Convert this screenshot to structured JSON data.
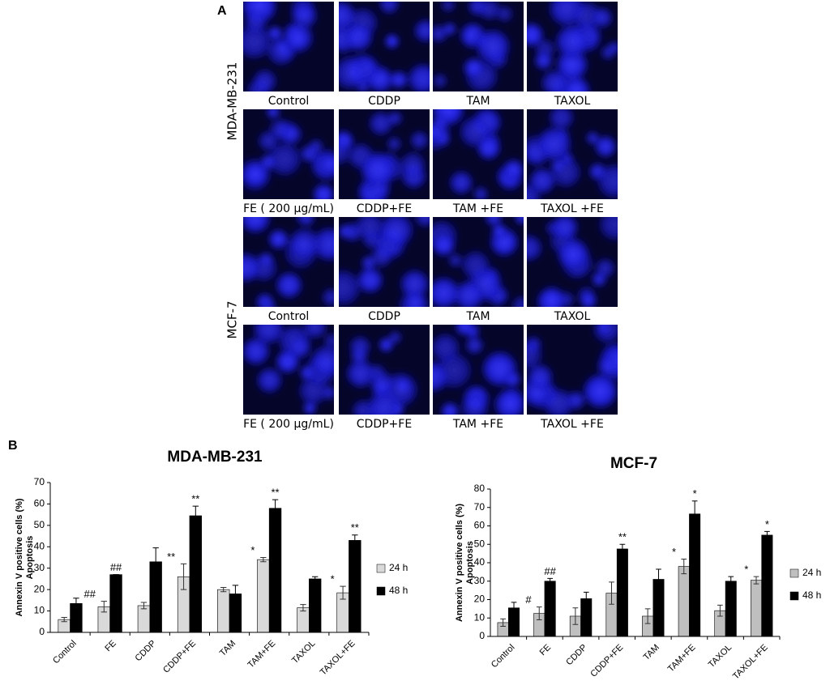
{
  "panel_a": {
    "label": "A",
    "row_labels": [
      "MDA-MB-231",
      "MCF-7"
    ],
    "captions": [
      [
        "Control",
        "CDDP",
        "TAM",
        "TAXOL"
      ],
      [
        "FE ( 200 µg/mL)",
        "CDDP+FE",
        "TAM +FE",
        "TAXOL +FE"
      ],
      [
        "Control",
        "CDDP",
        "TAM",
        "TAXOL"
      ],
      [
        "FE ( 200 µg/mL)",
        "CDDP+FE",
        "TAM +FE",
        "TAXOL +FE"
      ]
    ]
  },
  "panel_b_label": "B",
  "chart_data": [
    {
      "type": "bar",
      "title": "MDA-MB-231",
      "ylabel": [
        "Annexin V positive cells (%)",
        "Apoptosis"
      ],
      "categories": [
        "Control",
        "FE",
        "CDDP",
        "CDDP+FE",
        "TAM",
        "TAM+FE",
        "TAXOL",
        "TAXOL+FE"
      ],
      "series": [
        {
          "name": "24 h",
          "color": "#d9d9d9",
          "values": [
            6,
            12,
            12.5,
            26,
            20,
            34,
            11.5,
            18.5
          ],
          "errors": [
            1,
            2.5,
            1.5,
            6,
            1,
            1,
            1.5,
            3
          ],
          "annotations": [
            null,
            "##",
            null,
            "**",
            null,
            "*",
            null,
            "*"
          ]
        },
        {
          "name": "48 h",
          "color": "#000000",
          "values": [
            13.5,
            27,
            33,
            54.5,
            18,
            58,
            25,
            43
          ],
          "errors": [
            2.5,
            0,
            6.5,
            4.5,
            4,
            4,
            1,
            2.5
          ],
          "annotations": [
            null,
            "##",
            null,
            "**",
            null,
            "**",
            null,
            "**"
          ]
        }
      ],
      "ylim": [
        0,
        70
      ],
      "yticks": [
        0,
        10,
        20,
        30,
        40,
        50,
        60,
        70
      ],
      "legend": "right"
    },
    {
      "type": "bar",
      "title": "MCF-7",
      "ylabel": [
        "Annexin V positive cells (%)",
        "Apoptosis"
      ],
      "categories": [
        "Control",
        "FE",
        "CDDP",
        "CDDP+FE",
        "TAM",
        "TAM+FE",
        "TAXOL",
        "TAXOL+FE"
      ],
      "series": [
        {
          "name": "24 h",
          "color": "#bfbfbf",
          "values": [
            7.5,
            12.5,
            11,
            23.5,
            11,
            38,
            14,
            30.5
          ],
          "errors": [
            2,
            3.5,
            4.5,
            6,
            4,
            4,
            3,
            2
          ],
          "annotations": [
            null,
            "#",
            null,
            null,
            null,
            "*",
            null,
            "*"
          ]
        },
        {
          "name": "48 h",
          "color": "#000000",
          "values": [
            15.5,
            30,
            20.5,
            47.5,
            31,
            66.5,
            30,
            55
          ],
          "errors": [
            3,
            1.5,
            3.5,
            2.5,
            5.5,
            7,
            2.5,
            2
          ],
          "annotations": [
            null,
            "##",
            null,
            "**",
            null,
            "*",
            null,
            "*"
          ]
        }
      ],
      "ylim": [
        0,
        80
      ],
      "yticks": [
        0,
        10,
        20,
        30,
        40,
        50,
        60,
        70,
        80
      ],
      "legend": "right"
    }
  ]
}
